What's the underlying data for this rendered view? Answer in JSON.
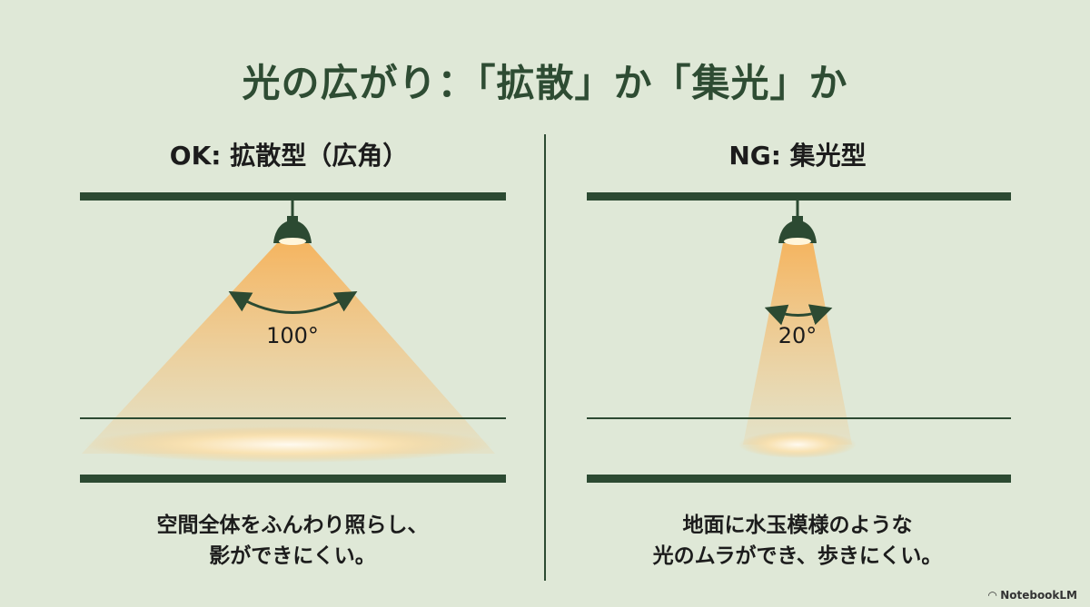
{
  "title": "光の広がり：「拡散」か「集光」か",
  "left": {
    "heading": "OK: 拡散型（広角）",
    "angle": "100°",
    "caption_lines": [
      "空間全体をふんわり照らし、",
      "影ができにくい。"
    ]
  },
  "right": {
    "heading": "NG: 集光型",
    "angle": "20°",
    "caption_lines": [
      "地面に水玉模様のような",
      "光のムラができ、歩きにくい。"
    ]
  },
  "brand": "NotebookLM",
  "colors": {
    "background": "#dfe8d7",
    "dark_green": "#2c4a32",
    "light": "#f7b865"
  }
}
